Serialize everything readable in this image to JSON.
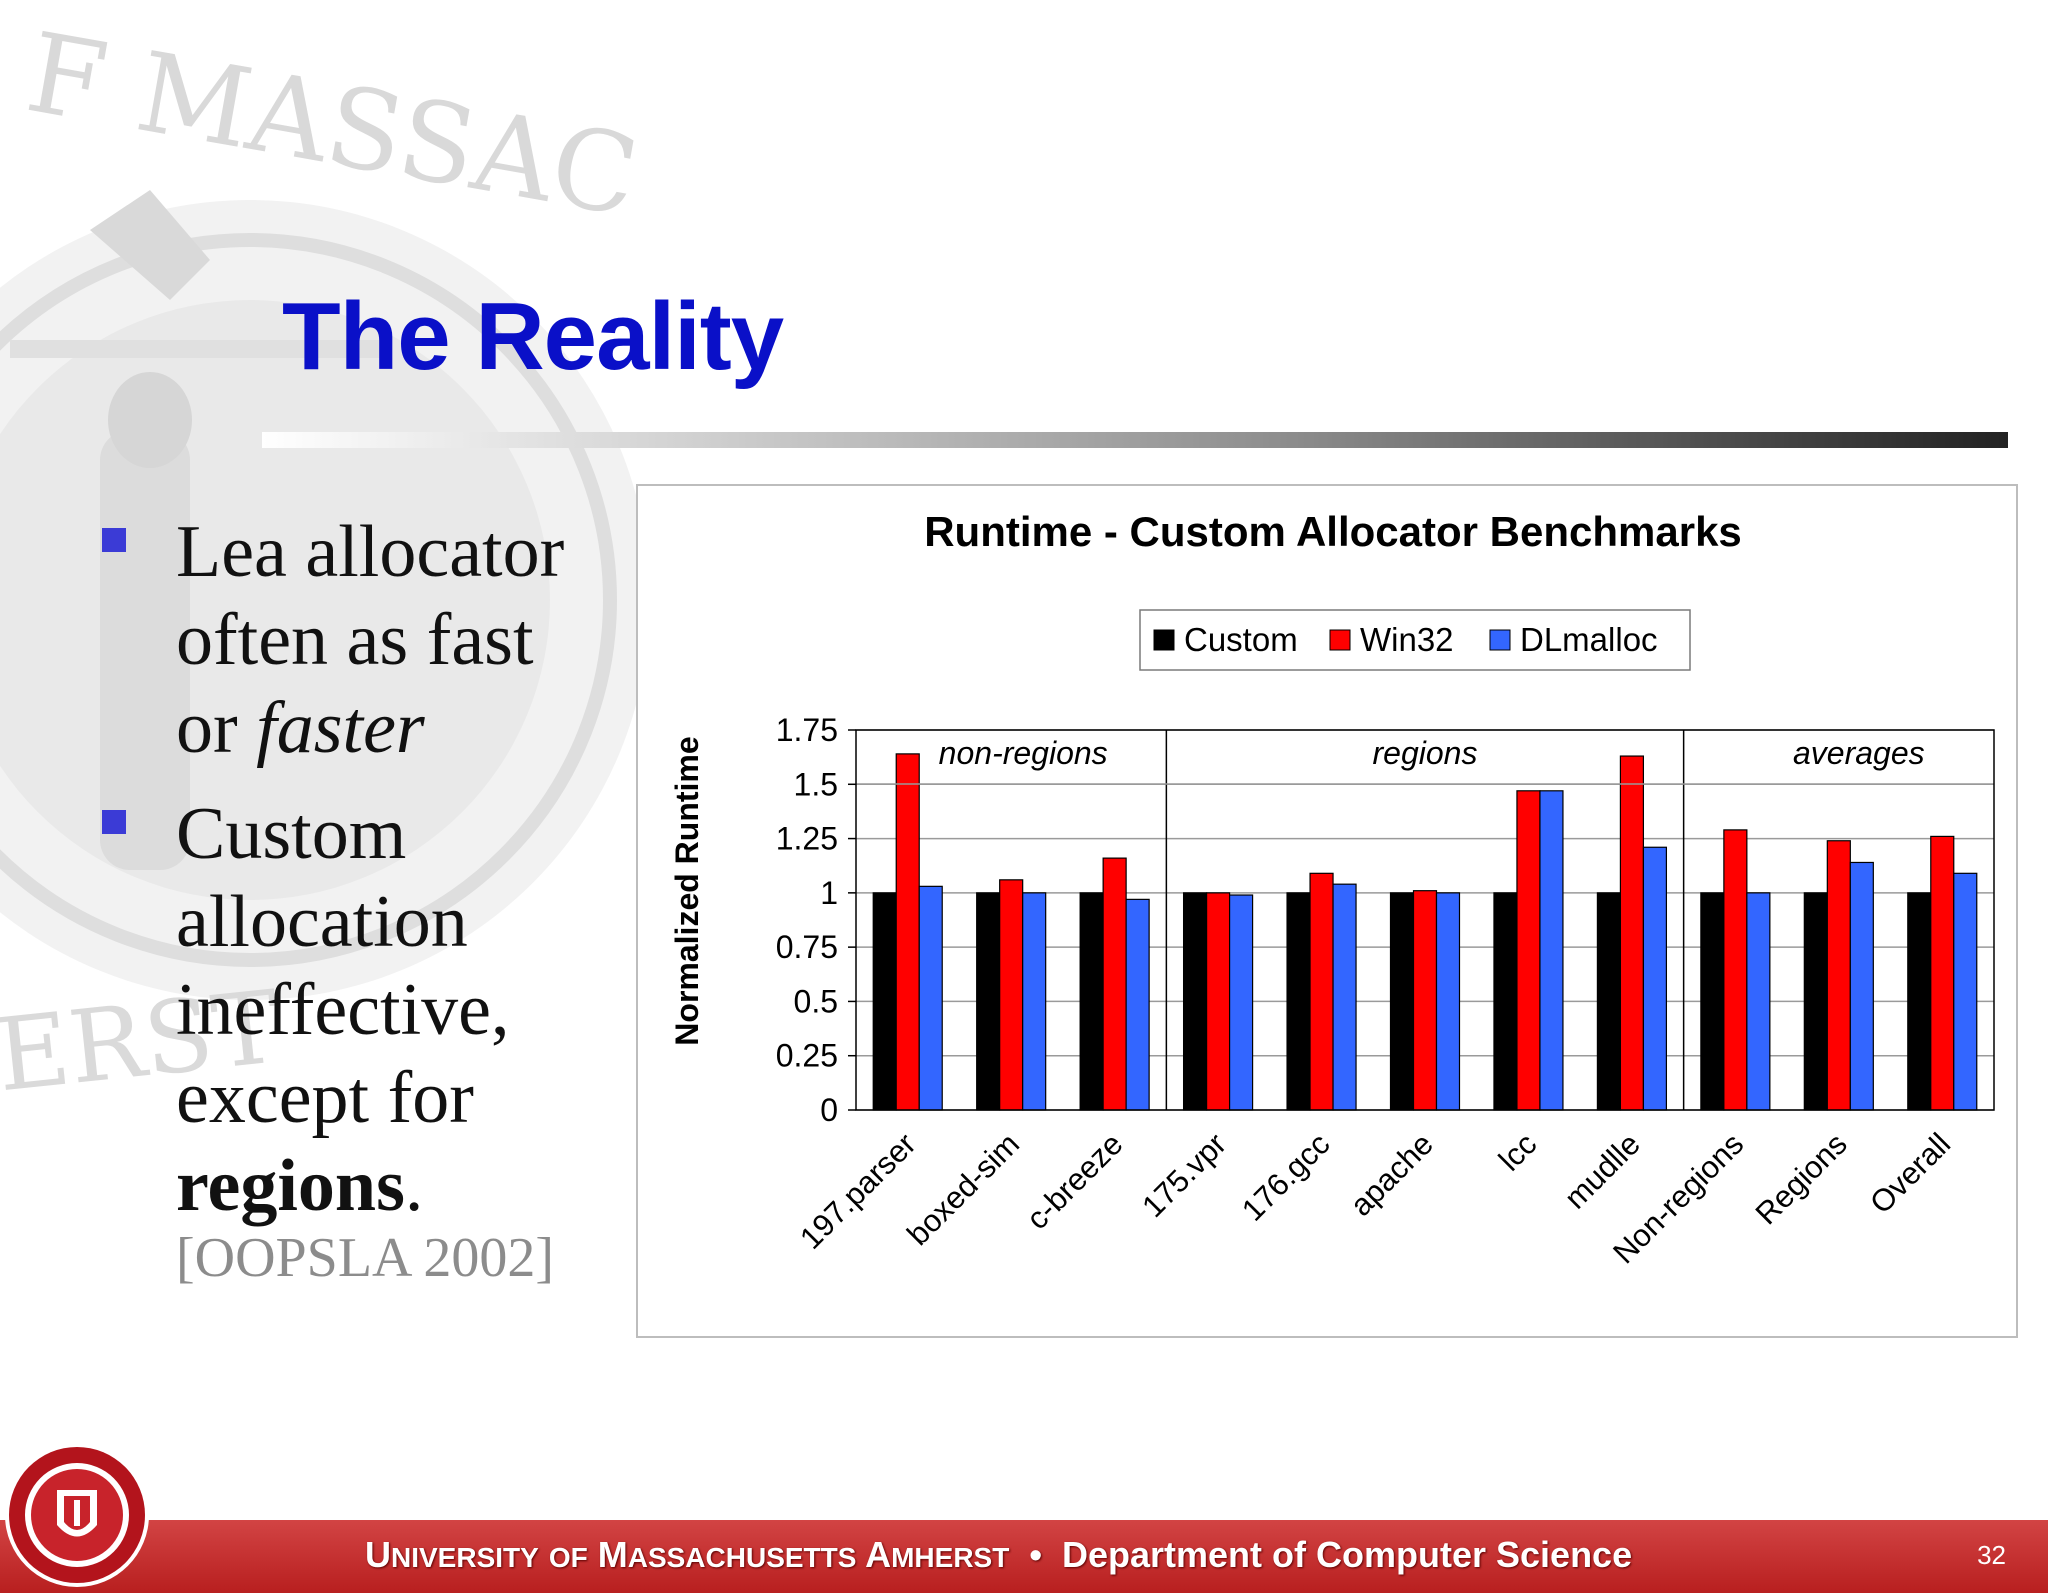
{
  "slide": {
    "title": "The Reality",
    "bullets": [
      {
        "line1": "Lea allocator",
        "line2": "often as fast",
        "line3_prefix": "or ",
        "line3_emph": "faster"
      },
      {
        "line1": "Custom",
        "line2": "allocation",
        "line3": "ineffective,",
        "line4": "except for",
        "line5_bold": "regions",
        "line5_suffix": "."
      }
    ],
    "citation": "[OOPSLA 2002]"
  },
  "footer": {
    "univ": [
      {
        "cap": "U",
        "rest": "NIVERSITY"
      },
      {
        "cap": "",
        "rest": "OF"
      },
      {
        "cap": "M",
        "rest": "ASSACHUSETTS"
      },
      {
        "cap": "A",
        "rest": "MHERST"
      }
    ],
    "separator": "•",
    "dept": "Department of Computer Science",
    "page_number": "32"
  },
  "colors": {
    "title": "#0a10c8",
    "bullet": "#3b3bd6",
    "footer": "#c62b2b",
    "custom": "#000000",
    "win32": "#ff0000",
    "dlmalloc": "#3366ff"
  },
  "chart_data": {
    "type": "bar",
    "title": "Runtime - Custom Allocator Benchmarks",
    "ylabel": "Normalized Runtime",
    "xlabel": "",
    "ylim": [
      0,
      1.75
    ],
    "yticks": [
      "0",
      "0.25",
      "0.5",
      "0.75",
      "1",
      "1.25",
      "1.5",
      "1.75"
    ],
    "legend_position": "top",
    "grid": true,
    "categories": [
      "197.parser",
      "boxed-sim",
      "c-breeze",
      "175.vpr",
      "176.gcc",
      "apache",
      "lcc",
      "mudlle",
      "Non-regions",
      "Regions",
      "Overall"
    ],
    "groups": [
      {
        "label": "non-regions",
        "from": 0,
        "to": 2
      },
      {
        "label": "regions",
        "from": 3,
        "to": 7
      },
      {
        "label": "averages",
        "from": 8,
        "to": 10
      }
    ],
    "series": [
      {
        "name": "Custom",
        "color": "#000000",
        "values": [
          1,
          1,
          1,
          1,
          1,
          1,
          1,
          1,
          1,
          1,
          1
        ]
      },
      {
        "name": "Win32",
        "color": "#ff0000",
        "values": [
          1.64,
          1.06,
          1.16,
          1.0,
          1.09,
          1.01,
          1.47,
          1.63,
          1.29,
          1.24,
          1.26
        ]
      },
      {
        "name": "DLmalloc",
        "color": "#3366ff",
        "values": [
          1.03,
          1.0,
          0.97,
          0.99,
          1.04,
          1.0,
          1.47,
          1.21,
          1.0,
          1.14,
          1.09
        ]
      }
    ]
  }
}
